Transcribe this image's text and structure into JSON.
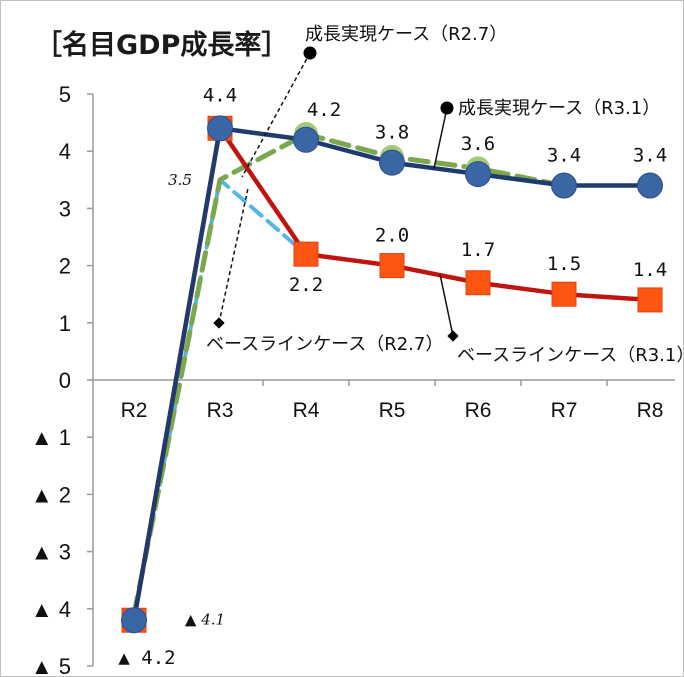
{
  "chart_data": {
    "type": "line",
    "title": "［名目GDP成長率］",
    "categories": [
      "R2",
      "R3",
      "R4",
      "R5",
      "R6",
      "R7",
      "R8"
    ],
    "ylim": [
      -5,
      5
    ],
    "y_ticks": [
      {
        "value": 5,
        "label": "5"
      },
      {
        "value": 4,
        "label": "4"
      },
      {
        "value": 3,
        "label": "3"
      },
      {
        "value": 2,
        "label": "2"
      },
      {
        "value": 1,
        "label": "1"
      },
      {
        "value": 0,
        "label": "0"
      },
      {
        "value": -1,
        "label": "▲ 1"
      },
      {
        "value": -2,
        "label": "▲ 2"
      },
      {
        "value": -3,
        "label": "▲ 3"
      },
      {
        "value": -4,
        "label": "▲ 4"
      },
      {
        "value": -5,
        "label": "▲ 5"
      }
    ],
    "grid": false,
    "series": [
      {
        "name": "ベースラインケース（R2.7）",
        "values": [
          -4.1,
          3.5,
          2.2,
          null,
          null,
          null,
          null
        ],
        "color": "#56b4e9",
        "style": "dashed"
      },
      {
        "name": "成長実現ケース（R2.7）",
        "values": [
          -4.1,
          3.5,
          4.3,
          3.9,
          3.7,
          3.4,
          null
        ],
        "color": "#7ba84e",
        "style": "dashed"
      },
      {
        "name": "ベースラインケース（R3.1）",
        "values": [
          -4.2,
          4.4,
          2.2,
          2.0,
          1.7,
          1.5,
          1.4
        ],
        "color": "#c0140e",
        "marker_color": "#ff5513",
        "style": "solid",
        "marker": "square"
      },
      {
        "name": "成長実現ケース（R3.1）",
        "values": [
          -4.2,
          4.4,
          4.2,
          3.8,
          3.6,
          3.4,
          3.4
        ],
        "color": "#1f3b6e",
        "marker_color": "#3b66a6",
        "style": "solid",
        "marker": "circle"
      }
    ],
    "data_labels": [
      {
        "category": "R3",
        "value": 4.4,
        "text": "4.4"
      },
      {
        "category": "R4",
        "value": 4.2,
        "text": "4.2"
      },
      {
        "category": "R5",
        "value": 3.8,
        "text": "3.8"
      },
      {
        "category": "R6",
        "value": 3.6,
        "text": "3.6"
      },
      {
        "category": "R7",
        "value": 3.4,
        "text": "3.4"
      },
      {
        "category": "R8",
        "value": 3.4,
        "text": "3.4"
      },
      {
        "category": "R4",
        "value": 2.2,
        "text": "2.2"
      },
      {
        "category": "R5",
        "value": 2.0,
        "text": "2.0"
      },
      {
        "category": "R6",
        "value": 1.7,
        "text": "1.7"
      },
      {
        "category": "R7",
        "value": 1.5,
        "text": "1.5"
      },
      {
        "category": "R8",
        "value": 1.4,
        "text": "1.4"
      },
      {
        "category": "R2",
        "value": -4.2,
        "text": "▲ 4.2"
      }
    ],
    "italic_labels": [
      {
        "category": "R3",
        "value": 3.5,
        "text": "3.5"
      },
      {
        "category": "R2",
        "value": -4.1,
        "text": "▲ 4.1"
      }
    ],
    "annotations": [
      {
        "text": "成長実現ケース（R2.7）",
        "style": "dashed",
        "arrow_to": "成長実現ケース（R2.7） R3"
      },
      {
        "text": "成長実現ケース（R3.1）",
        "style": "solid",
        "arrow_to": "成長実現ケース（R3.1） R5"
      },
      {
        "text": "ベースラインケース（R2.7）",
        "style": "dashed",
        "arrow_to": "ベースラインケース（R2.7） R3"
      },
      {
        "text": "ベースラインケース（R3.1）",
        "style": "solid",
        "arrow_to": "ベースラインケース（R3.1） R5"
      }
    ]
  }
}
